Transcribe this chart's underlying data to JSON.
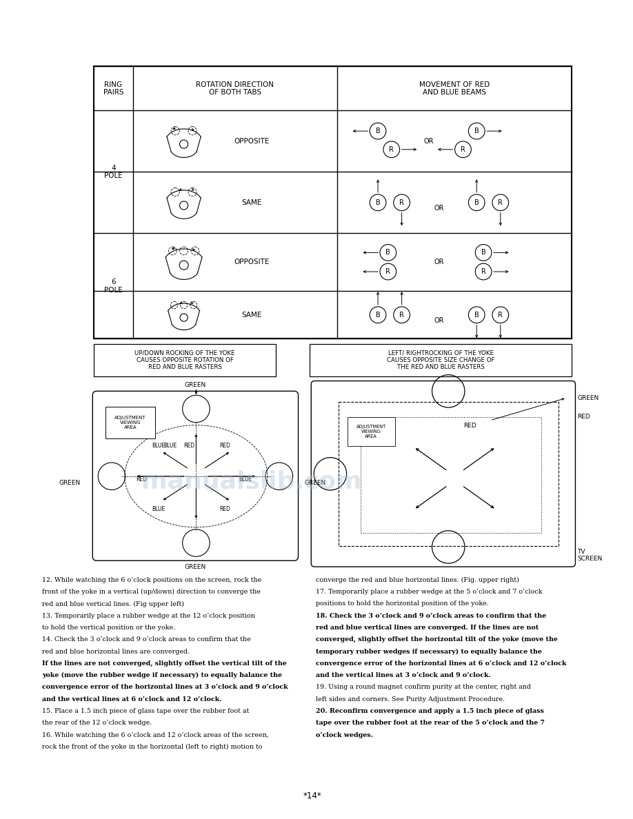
{
  "page_bg": "#ffffff",
  "page_width": 9.18,
  "page_height": 11.88,
  "text_left_box": "UP/DOWN ROCKING OF THE YOKE\nCAUSES OPPOSITE ROTATION OF\nRED AND BLUE RASTERS",
  "text_right_box": "LEFT/ RIGHTROCKING OF THE YOKE\nCAUSES OPPOSITE SIZE CHANGE OF\nTHE RED AND BLUE RASTERS",
  "bottom_text_left": [
    "12. While watching the 6 o’clock positions on the screen, rock the",
    "front of the yoke in a vertical (up/down) direction to converge the",
    "red and blue vertical lines. (Fig upper left)",
    "13. Temporarily place a rubber wedge at the 12 o’clock position",
    "to hold the vertical position or the yoke.",
    "14. Check the 3 o’clock and 9 o’clock areas to confirm that the",
    "red and blue horizontal lines are converged.",
    "If the lines are not converged, slightly offset the vertical tilt of the",
    "yoke (move the rubber wedge if necessary) to equally balance the",
    "convergence error of the horizontal lines at 3 o’clock and 9 o’clock",
    "and the vertical lines at 6 o’clock and 12 o’clock.",
    "15. Place a 1.5 inch piece of glass tape over the rubber foot at",
    "the rear of the 12 o’clock wedge.",
    "16. While watching the 6 o’clock and 12 o’clock areas of the screen,",
    "rock the front of the yoke in the horizontal (left to right) motion to"
  ],
  "bottom_text_right": [
    "converge the red and blue horizontal lines. (Fig. upper right)",
    "17. Temporarily place a rubber wedge at the 5 o’clock and 7 o’clock",
    "positions to hold the horizontal position of the yoke.",
    "18. Check the 3 o’clock and 9 o’clock areas to confirm that the",
    "red and blue vertical lines are converged. If the lines are not",
    "converged, slightly offset the horizontal tilt of the yoke (move the",
    "temporary rubber wedges if necessary) to equally balance the",
    "convergence error of the horizontal lines at 6 o’clock and 12 o’clock",
    "and the vertical lines at 3 o’clock and 9 o’clock.",
    "19. Using a round magnet confirm purity at the center, right and",
    "left sides and corners. See Purity Adjustment Procedure.",
    "20. Reconfirm convergence and apply a 1.5 inch piece of glass",
    "tape over the rubber foot at the rear of the 5 o’clock and the 7",
    "o’clock wedges."
  ],
  "footer": "*14*"
}
